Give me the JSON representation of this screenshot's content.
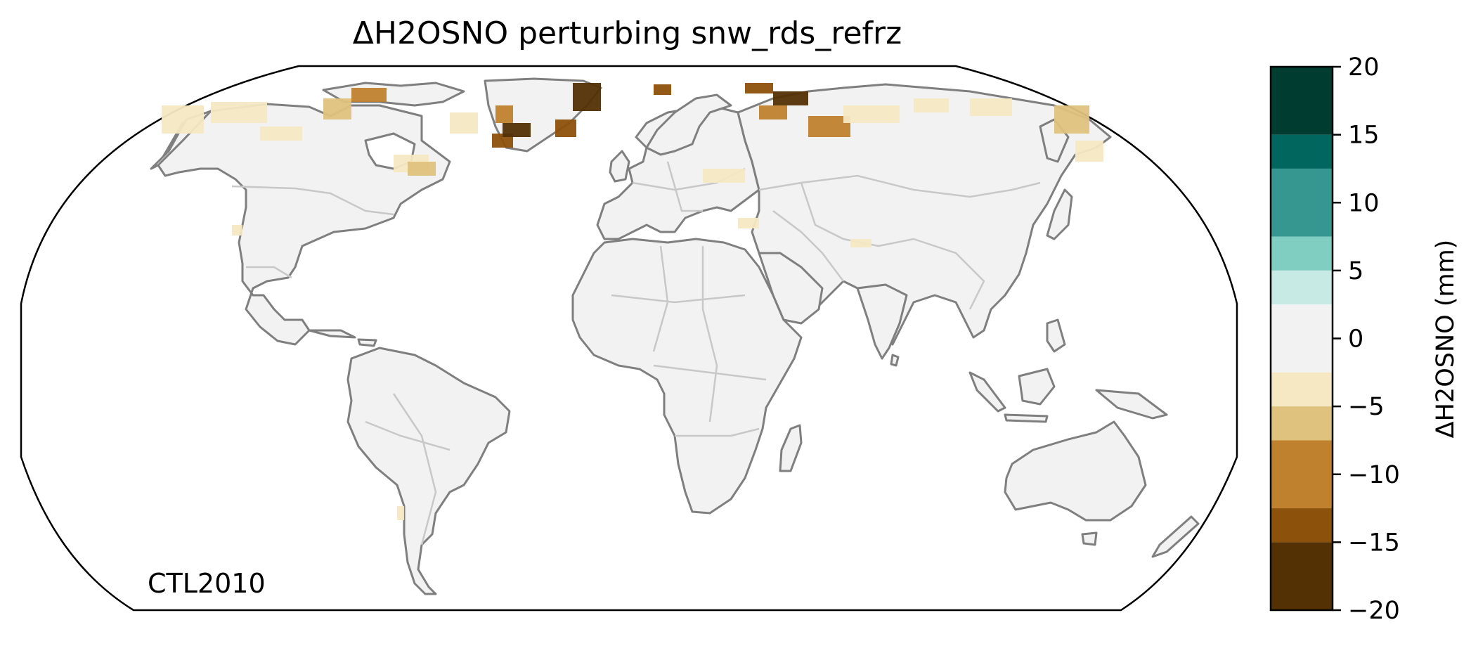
{
  "title": "ΔH2OSNO perturbing snw_rds_refrz",
  "panel_label": "CTL2010",
  "colorbar": {
    "label": "ΔH2OSNO (mm)",
    "ticks": [
      "20",
      "15",
      "10",
      "5",
      "0",
      "−5",
      "−10",
      "−15",
      "−20"
    ],
    "levels": [
      -20,
      -15,
      -10,
      -5,
      0,
      5,
      10,
      15,
      20
    ],
    "bins": [
      {
        "range": [
          15,
          20
        ],
        "color": "#003c30"
      },
      {
        "range": [
          12.5,
          15
        ],
        "color": "#01665e"
      },
      {
        "range": [
          7.5,
          12.5
        ],
        "color": "#35978f"
      },
      {
        "range": [
          5,
          7.5
        ],
        "color": "#80cdc1"
      },
      {
        "range": [
          2.5,
          5
        ],
        "color": "#c7eae5"
      },
      {
        "range": [
          -2.5,
          2.5
        ],
        "color": "#f2f2f2"
      },
      {
        "range": [
          -5,
          -2.5
        ],
        "color": "#f6e8c3"
      },
      {
        "range": [
          -7.5,
          -5
        ],
        "color": "#dfc27d"
      },
      {
        "range": [
          -12.5,
          -7.5
        ],
        "color": "#bf812d"
      },
      {
        "range": [
          -15,
          -12.5
        ],
        "color": "#8c510a"
      },
      {
        "range": [
          -20,
          -15
        ],
        "color": "#543005"
      }
    ]
  },
  "map": {
    "projection": "Robinson",
    "ocean_color": "#ffffff",
    "land_color": "#f2f2f2",
    "coastline_color": "#7f7f7f",
    "border_color": "#c8c8c8"
  }
}
